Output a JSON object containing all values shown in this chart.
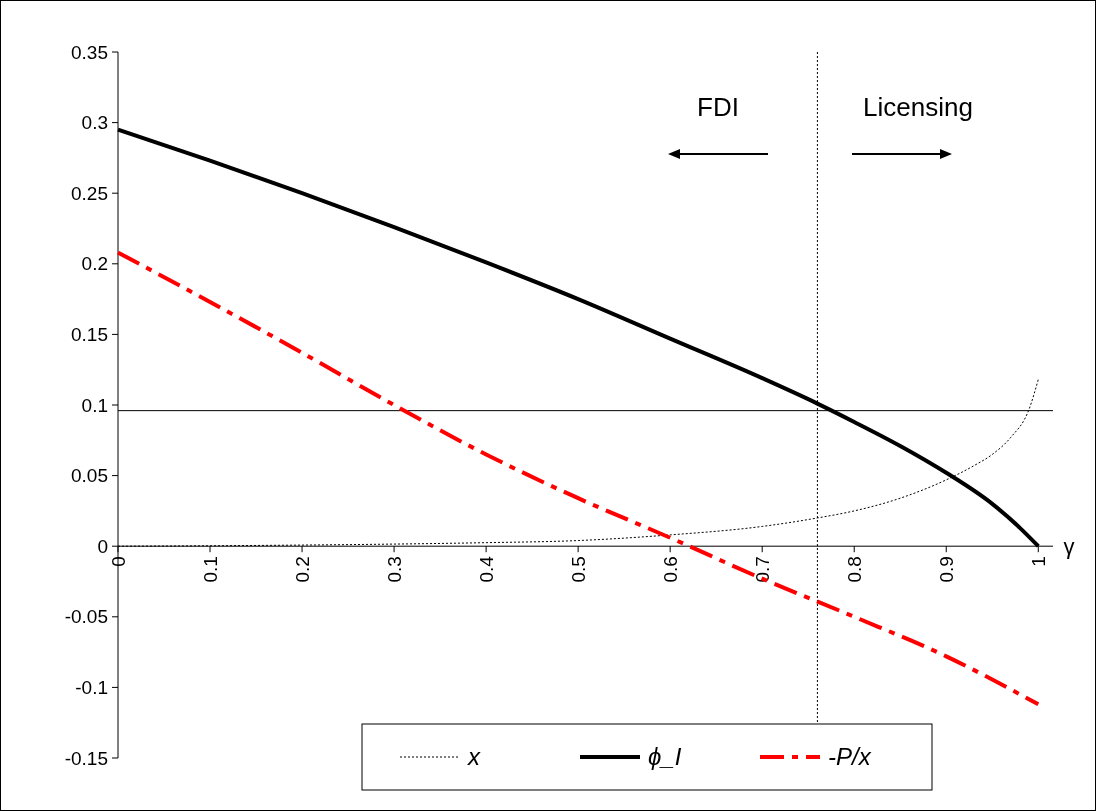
{
  "chart_data": {
    "type": "line",
    "xlabel": "γ",
    "xlim": [
      0,
      1.016
    ],
    "xticks": [
      0,
      0.1,
      0.2,
      0.3,
      0.4,
      0.5,
      0.6,
      0.7,
      0.8,
      0.9,
      1
    ],
    "ylim": [
      -0.15,
      0.35
    ],
    "yticks": [
      -0.15,
      -0.1,
      -0.05,
      0,
      0.05,
      0.1,
      0.15,
      0.2,
      0.25,
      0.3,
      0.35
    ],
    "legend": "bottom",
    "series": [
      {
        "name": "x",
        "color": "#000000",
        "line_style": "dotted",
        "x": [
          0,
          0.1,
          0.2,
          0.3,
          0.4,
          0.5,
          0.6,
          0.7,
          0.76,
          0.8,
          0.85,
          0.9,
          0.93,
          0.95,
          0.97,
          0.99,
          1
        ],
        "values": [
          0,
          0.0003,
          0.0008,
          0.0015,
          0.0025,
          0.004,
          0.008,
          0.014,
          0.02,
          0.025,
          0.034,
          0.047,
          0.057,
          0.065,
          0.077,
          0.097,
          0.118
        ]
      },
      {
        "name": "ϕ_I",
        "color": "#000000",
        "line_style": "solid",
        "x": [
          0,
          0.1,
          0.2,
          0.3,
          0.4,
          0.5,
          0.6,
          0.7,
          0.76,
          0.8,
          0.85,
          0.9,
          0.95,
          0.98,
          1
        ],
        "values": [
          0.295,
          0.273,
          0.25,
          0.226,
          0.201,
          0.175,
          0.147,
          0.119,
          0.101,
          0.088,
          0.071,
          0.052,
          0.03,
          0.013,
          0
        ]
      },
      {
        "name": "-P/x",
        "color": "#ff0000",
        "line_style": "dashed",
        "x": [
          0,
          0.1,
          0.2,
          0.3,
          0.4,
          0.5,
          0.6,
          0.7,
          0.8,
          0.9,
          1
        ],
        "values": [
          0.208,
          0.173,
          0.137,
          0.1,
          0.065,
          0.034,
          0.006,
          -0.023,
          -0.05,
          -0.078,
          -0.112
        ]
      }
    ],
    "ref_lines": [
      {
        "axis": "y",
        "value": 0.096,
        "color": "#000000",
        "line_style": "solid"
      },
      {
        "axis": "x",
        "value": 0.76,
        "color": "#000000",
        "line_style": "dotted"
      }
    ],
    "annotations": [
      "FDI",
      "Licensing"
    ]
  }
}
